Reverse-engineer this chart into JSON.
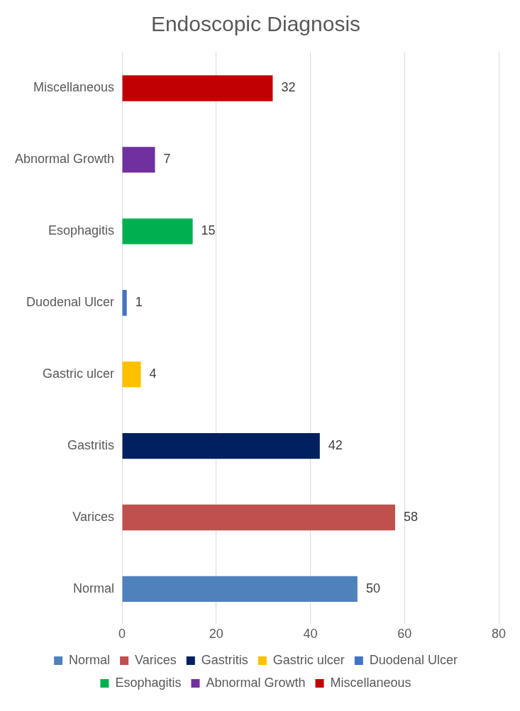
{
  "chart_data": {
    "type": "bar",
    "orientation": "horizontal",
    "title": "Endoscopic Diagnosis",
    "categories": [
      "Miscellaneous",
      "Abnormal Growth",
      "Esophagitis",
      "Duodenal Ulcer",
      "Gastric ulcer",
      "Gastritis",
      "Varices",
      "Normal"
    ],
    "series": [
      {
        "name": "Normal",
        "color": "#4f81bd",
        "values": [
          null,
          null,
          null,
          null,
          null,
          null,
          null,
          50
        ]
      },
      {
        "name": "Varices",
        "color": "#c0504d",
        "values": [
          null,
          null,
          null,
          null,
          null,
          null,
          58,
          null
        ]
      },
      {
        "name": "Gastritis",
        "color": "#002060",
        "values": [
          null,
          null,
          null,
          null,
          null,
          42,
          null,
          null
        ]
      },
      {
        "name": "Gastric ulcer",
        "color": "#ffc000",
        "values": [
          null,
          null,
          null,
          null,
          4,
          null,
          null,
          null
        ]
      },
      {
        "name": "Duodenal Ulcer",
        "color": "#4472c4",
        "values": [
          null,
          null,
          null,
          1,
          null,
          null,
          null,
          null
        ]
      },
      {
        "name": "Esophagitis",
        "color": "#00b050",
        "values": [
          null,
          null,
          15,
          null,
          null,
          null,
          null,
          null
        ]
      },
      {
        "name": "Abnormal Growth",
        "color": "#7030a0",
        "values": [
          null,
          7,
          null,
          null,
          null,
          null,
          null,
          null
        ]
      },
      {
        "name": "Miscellaneous",
        "color": "#c00000",
        "values": [
          32,
          null,
          null,
          null,
          null,
          null,
          null,
          null
        ]
      }
    ],
    "xlim": [
      0,
      80
    ],
    "xticks": [
      0,
      20,
      40,
      60,
      80
    ],
    "grid": "x",
    "legend": "bottom",
    "data_labels": true
  }
}
